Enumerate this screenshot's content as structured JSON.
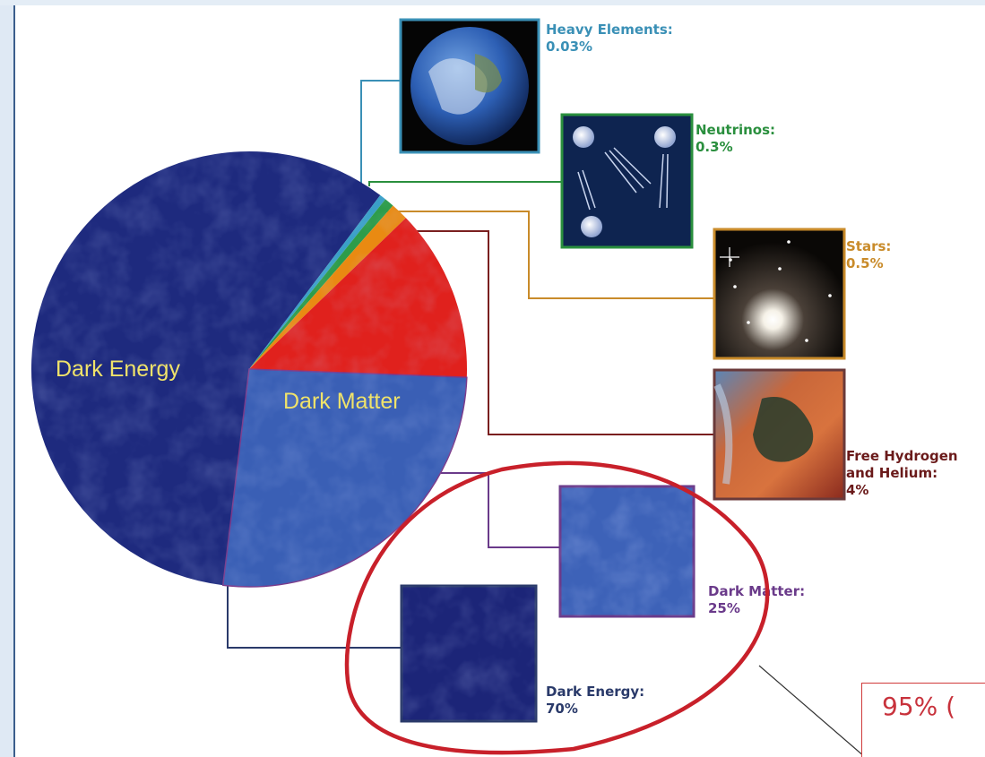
{
  "chart_data": {
    "type": "pie",
    "slices": [
      {
        "label": "Dark Energy",
        "value": 70,
        "color": "#1e2a7e"
      },
      {
        "label": "Dark Matter",
        "value": 25,
        "color": "#3a5fb5"
      },
      {
        "label": "Free Hydrogen and Helium",
        "value": 4,
        "color": "#e0211d"
      },
      {
        "label": "Stars",
        "value": 0.5,
        "color": "#e98a12"
      },
      {
        "label": "Neutrinos",
        "value": 0.3,
        "color": "#2d9c4a"
      },
      {
        "label": "Heavy Elements",
        "value": 0.03,
        "color": "#3aa0c8"
      }
    ],
    "pie_labels": {
      "dark_energy": "Dark Energy",
      "dark_matter": "Dark Matter"
    },
    "legend": [
      {
        "key": "heavy",
        "lines": [
          "Heavy Elements:",
          "0.03%"
        ],
        "color": "#3a90b6",
        "image": "earth-globe"
      },
      {
        "key": "neutrinos",
        "lines": [
          "Neutrinos:",
          "0.3%"
        ],
        "color": "#2a8f3e",
        "image": "neutrino-diagram"
      },
      {
        "key": "stars",
        "lines": [
          "Stars:",
          "0.5%"
        ],
        "color": "#c98b2a",
        "image": "star-cluster"
      },
      {
        "key": "gas",
        "lines": [
          "Free Hydrogen",
          "and Helium:",
          "4%"
        ],
        "color": "#7a1f1f",
        "image": "nebula"
      },
      {
        "key": "dm",
        "lines": [
          "Dark Matter:",
          "25%"
        ],
        "color": "#6a3a8a",
        "image": "dark-matter-texture"
      },
      {
        "key": "de",
        "lines": [
          "Dark Energy:",
          "70%"
        ],
        "color": "#2a3a6a",
        "image": "dark-energy-texture"
      }
    ]
  },
  "annotation": {
    "callout_text": "95% (",
    "ellipse_color": "#c8202a"
  }
}
